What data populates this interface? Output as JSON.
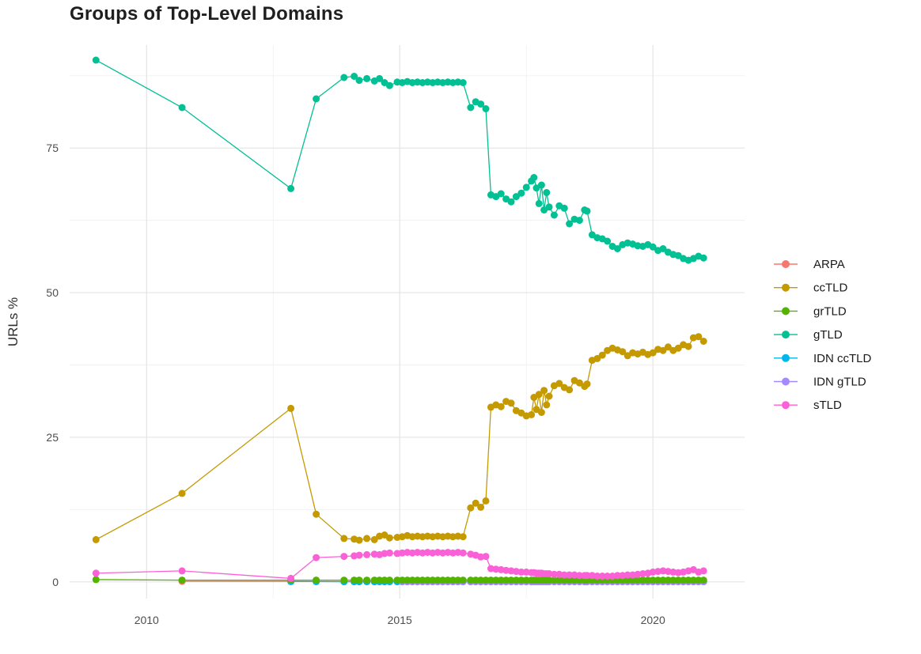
{
  "chart_data": {
    "type": "line",
    "marker": "circle",
    "title": "Groups of Top-Level Domains",
    "xlabel": "",
    "ylabel": "URLs %",
    "x_ticks": [
      2010,
      2015,
      2020
    ],
    "x_minor_ticks": [
      2012.5,
      2017.5
    ],
    "y_ticks": [
      0,
      25,
      50,
      75
    ],
    "y_minor_ticks": [
      12.5,
      37.5,
      62.5,
      87.5
    ],
    "xlim": [
      2008.48,
      2021.81
    ],
    "ylim": [
      -2.9,
      92.8
    ],
    "grid": true,
    "legend_position": "right",
    "axis_text_color": "#4d4d4d",
    "grid_major_color": "#e4e4e4",
    "grid_minor_color": "#f1f1f1",
    "draw_order": [
      "ARPA",
      "IDN ccTLD",
      "IDN gTLD",
      "grTLD",
      "ccTLD",
      "gTLD",
      "sTLD"
    ],
    "x": [
      2009.0,
      2010.7,
      2012.85,
      2013.35,
      2013.9,
      2014.1,
      2014.2,
      2014.35,
      2014.5,
      2014.6,
      2014.7,
      2014.8,
      2014.95,
      2015.05,
      2015.15,
      2015.25,
      2015.35,
      2015.45,
      2015.55,
      2015.65,
      2015.75,
      2015.85,
      2015.95,
      2016.05,
      2016.15,
      2016.25,
      2016.4,
      2016.5,
      2016.6,
      2016.7,
      2016.8,
      2016.9,
      2017.0,
      2017.1,
      2017.2,
      2017.3,
      2017.4,
      2017.5,
      2017.6,
      2017.65,
      2017.7,
      2017.75,
      2017.8,
      2017.85,
      2017.9,
      2017.95,
      2018.05,
      2018.15,
      2018.25,
      2018.35,
      2018.45,
      2018.55,
      2018.65,
      2018.7,
      2018.8,
      2018.9,
      2019.0,
      2019.1,
      2019.2,
      2019.3,
      2019.4,
      2019.5,
      2019.6,
      2019.7,
      2019.8,
      2019.9,
      2020.0,
      2020.1,
      2020.2,
      2020.3,
      2020.4,
      2020.5,
      2020.6,
      2020.7,
      2020.8,
      2020.9,
      2021.0
    ],
    "series": [
      {
        "name": "ARPA",
        "color": "#F8766D",
        "start": 1,
        "y": [
          0.1,
          0.08,
          0.05,
          0.05,
          0.05,
          0.05,
          0.05,
          0.05,
          0.05,
          0.05,
          0.05,
          0.05,
          0.05,
          0.05,
          0.05,
          0.05,
          0.05,
          0.05,
          0.05,
          0.05,
          0.05,
          0.05,
          0.05,
          0.05,
          0.05,
          0.05,
          0.05,
          0.05,
          0.05,
          0.05,
          0.05,
          0.05,
          0.05,
          0.05,
          0.05,
          0.05,
          0.05,
          0.05,
          0.05,
          0.05,
          0.05,
          0.05,
          0.05,
          0.05,
          0.05,
          0.05,
          0.05,
          0.05,
          0.05,
          0.05,
          0.05,
          0.05,
          0.05,
          0.05,
          0.05,
          0.05,
          0.05,
          0.05,
          0.05,
          0.05,
          0.05,
          0.05,
          0.05,
          0.05,
          0.05,
          0.05,
          0.05,
          0.05,
          0.05,
          0.05,
          0.05,
          0.05,
          0.05,
          0.05,
          0.05,
          0.05
        ]
      },
      {
        "name": "ccTLD",
        "color": "#C49A00",
        "start": 0,
        "y": [
          7.3,
          15.3,
          30.0,
          11.7,
          7.5,
          7.4,
          7.2,
          7.5,
          7.3,
          7.9,
          8.1,
          7.6,
          7.7,
          7.8,
          8.0,
          7.8,
          7.9,
          7.8,
          7.9,
          7.8,
          7.9,
          7.8,
          7.9,
          7.8,
          7.9,
          7.8,
          12.8,
          13.6,
          12.9,
          14.0,
          30.2,
          30.6,
          30.3,
          31.2,
          30.9,
          29.6,
          29.2,
          28.7,
          28.9,
          31.9,
          29.8,
          32.4,
          29.3,
          33.1,
          30.6,
          32.1,
          33.9,
          34.3,
          33.6,
          33.2,
          34.8,
          34.4,
          33.8,
          34.2,
          38.3,
          38.6,
          39.2,
          40.0,
          40.4,
          40.1,
          39.8,
          39.1,
          39.6,
          39.4,
          39.7,
          39.3,
          39.6,
          40.2,
          40.0,
          40.6,
          40.0,
          40.4,
          41.0,
          40.7,
          42.2,
          42.4,
          41.6
        ]
      },
      {
        "name": "grTLD",
        "color": "#53B400",
        "start": 0,
        "y": [
          0.4,
          0.3,
          0.3,
          0.3,
          0.3,
          0.3,
          0.3,
          0.3,
          0.3,
          0.3,
          0.3,
          0.3,
          0.3,
          0.3,
          0.3,
          0.3,
          0.3,
          0.3,
          0.3,
          0.3,
          0.3,
          0.3,
          0.3,
          0.3,
          0.3,
          0.3,
          0.3,
          0.3,
          0.3,
          0.3,
          0.3,
          0.3,
          0.3,
          0.3,
          0.3,
          0.3,
          0.3,
          0.3,
          0.3,
          0.3,
          0.3,
          0.3,
          0.3,
          0.3,
          0.3,
          0.3,
          0.3,
          0.3,
          0.3,
          0.3,
          0.3,
          0.3,
          0.3,
          0.3,
          0.3,
          0.3,
          0.3,
          0.3,
          0.3,
          0.3,
          0.3,
          0.3,
          0.3,
          0.3,
          0.3,
          0.3,
          0.3,
          0.3,
          0.3,
          0.3,
          0.3,
          0.3,
          0.3,
          0.3,
          0.3,
          0.3,
          0.3
        ]
      },
      {
        "name": "gTLD",
        "color": "#00C094",
        "start": 0,
        "y": [
          90.2,
          82.0,
          68.0,
          83.5,
          87.2,
          87.4,
          86.7,
          87.0,
          86.6,
          87.0,
          86.3,
          85.8,
          86.4,
          86.3,
          86.5,
          86.3,
          86.4,
          86.3,
          86.4,
          86.3,
          86.4,
          86.3,
          86.4,
          86.3,
          86.4,
          86.3,
          82.0,
          83.0,
          82.6,
          81.8,
          66.9,
          66.6,
          67.1,
          66.2,
          65.7,
          66.6,
          67.2,
          68.2,
          69.3,
          69.9,
          68.1,
          65.4,
          68.6,
          64.3,
          67.3,
          64.8,
          63.4,
          65.0,
          64.6,
          61.9,
          62.7,
          62.5,
          64.3,
          64.1,
          60.0,
          59.5,
          59.3,
          58.9,
          58.0,
          57.6,
          58.3,
          58.6,
          58.4,
          58.1,
          58.0,
          58.3,
          57.9,
          57.3,
          57.6,
          57.0,
          56.6,
          56.4,
          55.9,
          55.6,
          55.9,
          56.3,
          56.0
        ]
      },
      {
        "name": "IDN ccTLD",
        "color": "#00B6EB",
        "start": 2,
        "y": [
          0.05,
          0.05,
          0.02,
          0.02,
          0.02,
          0.02,
          0.02,
          0.02,
          0.02,
          0.02,
          0.02,
          0.02,
          0.02,
          0.02,
          0.02,
          0.02,
          0.02,
          0.02,
          0.02,
          0.02,
          0.02,
          0.02,
          0.02,
          0.02,
          0.02,
          0.02,
          0.02,
          0.02,
          0.02,
          0.02,
          0.02,
          0.02,
          0.02,
          0.02,
          0.02,
          0.02,
          0.02,
          0.02,
          0.02,
          0.02,
          0.02,
          0.02,
          0.02,
          0.02,
          0.02,
          0.02,
          0.02,
          0.02,
          0.02,
          0.02,
          0.02,
          0.02,
          0.02,
          0.02,
          0.02,
          0.02,
          0.02,
          0.02,
          0.02,
          0.02,
          0.02,
          0.02,
          0.02,
          0.02,
          0.02,
          0.02,
          0.02,
          0.02,
          0.02,
          0.02,
          0.02,
          0.02,
          0.02,
          0.02,
          0.02
        ]
      },
      {
        "name": "IDN gTLD",
        "color": "#A58AFF",
        "start": 13,
        "y": [
          0.03,
          0.03,
          0.03,
          0.03,
          0.03,
          0.03,
          0.03,
          0.03,
          0.03,
          0.03,
          0.03,
          0.03,
          0.03,
          0.03,
          0.03,
          0.03,
          0.03,
          0.03,
          0.03,
          0.03,
          0.03,
          0.03,
          0.03,
          0.03,
          0.03,
          0.03,
          0.03,
          0.03,
          0.03,
          0.03,
          0.03,
          0.03,
          0.03,
          0.03,
          0.03,
          0.03,
          0.03,
          0.03,
          0.03,
          0.03,
          0.03,
          0.03,
          0.03,
          0.03,
          0.03,
          0.03,
          0.03,
          0.03,
          0.03,
          0.03,
          0.03,
          0.03,
          0.03,
          0.03,
          0.03,
          0.03,
          0.03,
          0.03,
          0.03,
          0.03,
          0.03,
          0.03,
          0.03,
          0.03
        ]
      },
      {
        "name": "sTLD",
        "color": "#FB61D7",
        "start": 0,
        "y": [
          1.5,
          1.9,
          0.6,
          4.2,
          4.4,
          4.5,
          4.6,
          4.7,
          4.8,
          4.7,
          4.9,
          5.0,
          4.9,
          5.0,
          5.1,
          5.0,
          5.1,
          5.0,
          5.1,
          5.0,
          5.1,
          5.0,
          5.1,
          5.0,
          5.1,
          5.0,
          4.8,
          4.6,
          4.3,
          4.4,
          2.3,
          2.2,
          2.1,
          2.0,
          1.9,
          1.8,
          1.7,
          1.7,
          1.6,
          1.6,
          1.5,
          1.5,
          1.5,
          1.4,
          1.4,
          1.4,
          1.3,
          1.3,
          1.2,
          1.2,
          1.2,
          1.1,
          1.1,
          1.1,
          1.1,
          1.0,
          1.0,
          1.0,
          1.0,
          1.1,
          1.1,
          1.2,
          1.2,
          1.3,
          1.4,
          1.5,
          1.7,
          1.8,
          1.9,
          1.8,
          1.7,
          1.6,
          1.7,
          1.9,
          2.1,
          1.7,
          1.9
        ]
      }
    ]
  }
}
